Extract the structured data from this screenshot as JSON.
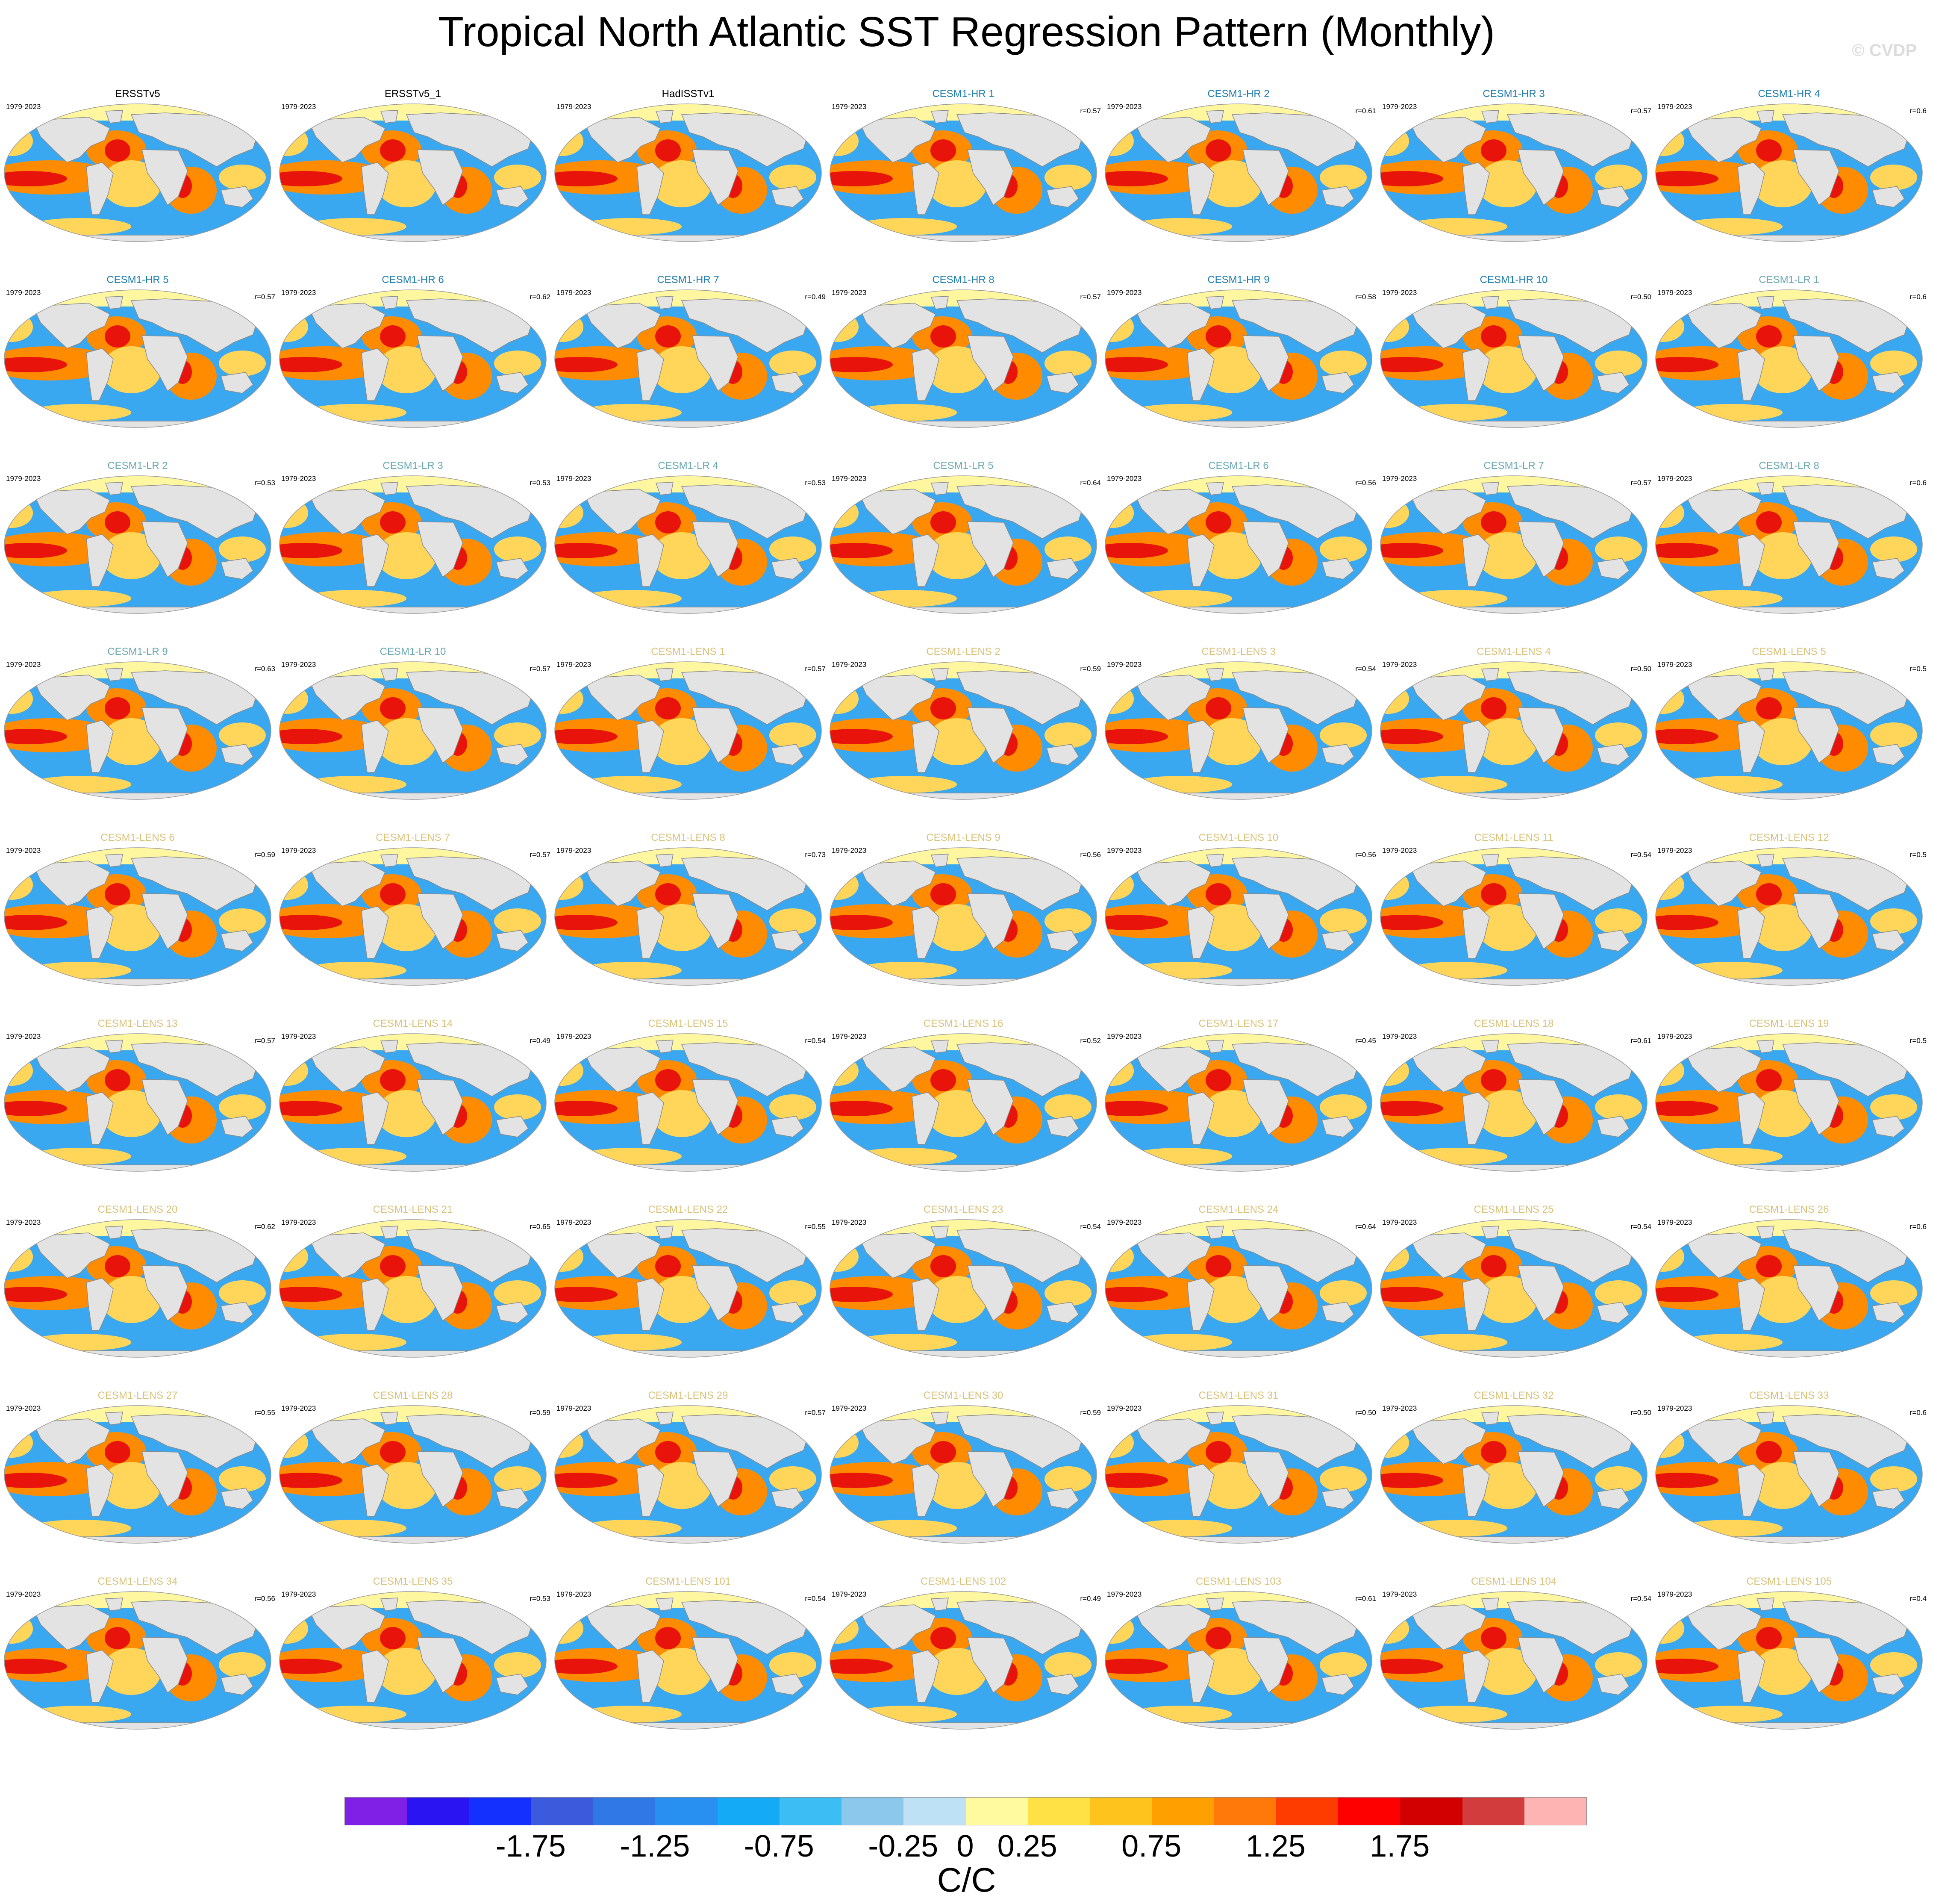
{
  "title": "Tropical North Atlantic SST Regression Pattern (Monthly)",
  "credit": "© CVDP",
  "period": "1979-2023",
  "panels": [
    {
      "name": "ERSSTv5",
      "group": "obs",
      "r": ""
    },
    {
      "name": "ERSSTv5_1",
      "group": "obs",
      "r": ""
    },
    {
      "name": "HadISSTv1",
      "group": "obs",
      "r": ""
    },
    {
      "name": "CESM1-HR 1",
      "group": "hr",
      "r": "r=0.57"
    },
    {
      "name": "CESM1-HR 2",
      "group": "hr",
      "r": "r=0.61"
    },
    {
      "name": "CESM1-HR 3",
      "group": "hr",
      "r": "r=0.57"
    },
    {
      "name": "CESM1-HR 4",
      "group": "hr",
      "r": "r=0.6"
    },
    {
      "name": "CESM1-HR 5",
      "group": "hr",
      "r": "r=0.57"
    },
    {
      "name": "CESM1-HR 6",
      "group": "hr",
      "r": "r=0.62"
    },
    {
      "name": "CESM1-HR 7",
      "group": "hr",
      "r": "r=0.49"
    },
    {
      "name": "CESM1-HR 8",
      "group": "hr",
      "r": "r=0.57"
    },
    {
      "name": "CESM1-HR 9",
      "group": "hr",
      "r": "r=0.58"
    },
    {
      "name": "CESM1-HR 10",
      "group": "hr",
      "r": "r=0.50"
    },
    {
      "name": "CESM1-LR 1",
      "group": "lr",
      "r": "r=0.6"
    },
    {
      "name": "CESM1-LR 2",
      "group": "lr",
      "r": "r=0.53"
    },
    {
      "name": "CESM1-LR 3",
      "group": "lr",
      "r": "r=0.53"
    },
    {
      "name": "CESM1-LR 4",
      "group": "lr",
      "r": "r=0.53"
    },
    {
      "name": "CESM1-LR 5",
      "group": "lr",
      "r": "r=0.64"
    },
    {
      "name": "CESM1-LR 6",
      "group": "lr",
      "r": "r=0.56"
    },
    {
      "name": "CESM1-LR 7",
      "group": "lr",
      "r": "r=0.57"
    },
    {
      "name": "CESM1-LR 8",
      "group": "lr",
      "r": "r=0.6"
    },
    {
      "name": "CESM1-LR 9",
      "group": "lr",
      "r": "r=0.63"
    },
    {
      "name": "CESM1-LR 10",
      "group": "lr",
      "r": "r=0.57"
    },
    {
      "name": "CESM1-LENS 1",
      "group": "lens",
      "r": "r=0.57"
    },
    {
      "name": "CESM1-LENS 2",
      "group": "lens",
      "r": "r=0.59"
    },
    {
      "name": "CESM1-LENS 3",
      "group": "lens",
      "r": "r=0.54"
    },
    {
      "name": "CESM1-LENS 4",
      "group": "lens",
      "r": "r=0.50"
    },
    {
      "name": "CESM1-LENS 5",
      "group": "lens",
      "r": "r=0.5"
    },
    {
      "name": "CESM1-LENS 6",
      "group": "lens",
      "r": "r=0.59"
    },
    {
      "name": "CESM1-LENS 7",
      "group": "lens",
      "r": "r=0.57"
    },
    {
      "name": "CESM1-LENS 8",
      "group": "lens",
      "r": "r=0.73"
    },
    {
      "name": "CESM1-LENS 9",
      "group": "lens",
      "r": "r=0.56"
    },
    {
      "name": "CESM1-LENS 10",
      "group": "lens",
      "r": "r=0.56"
    },
    {
      "name": "CESM1-LENS 11",
      "group": "lens",
      "r": "r=0.54"
    },
    {
      "name": "CESM1-LENS 12",
      "group": "lens",
      "r": "r=0.5"
    },
    {
      "name": "CESM1-LENS 13",
      "group": "lens",
      "r": "r=0.57"
    },
    {
      "name": "CESM1-LENS 14",
      "group": "lens",
      "r": "r=0.49"
    },
    {
      "name": "CESM1-LENS 15",
      "group": "lens",
      "r": "r=0.54"
    },
    {
      "name": "CESM1-LENS 16",
      "group": "lens",
      "r": "r=0.52"
    },
    {
      "name": "CESM1-LENS 17",
      "group": "lens",
      "r": "r=0.45"
    },
    {
      "name": "CESM1-LENS 18",
      "group": "lens",
      "r": "r=0.61"
    },
    {
      "name": "CESM1-LENS 19",
      "group": "lens",
      "r": "r=0.5"
    },
    {
      "name": "CESM1-LENS 20",
      "group": "lens",
      "r": "r=0.62"
    },
    {
      "name": "CESM1-LENS 21",
      "group": "lens",
      "r": "r=0.65"
    },
    {
      "name": "CESM1-LENS 22",
      "group": "lens",
      "r": "r=0.55"
    },
    {
      "name": "CESM1-LENS 23",
      "group": "lens",
      "r": "r=0.54"
    },
    {
      "name": "CESM1-LENS 24",
      "group": "lens",
      "r": "r=0.64"
    },
    {
      "name": "CESM1-LENS 25",
      "group": "lens",
      "r": "r=0.54"
    },
    {
      "name": "CESM1-LENS 26",
      "group": "lens",
      "r": "r=0.6"
    },
    {
      "name": "CESM1-LENS 27",
      "group": "lens",
      "r": "r=0.55"
    },
    {
      "name": "CESM1-LENS 28",
      "group": "lens",
      "r": "r=0.59"
    },
    {
      "name": "CESM1-LENS 29",
      "group": "lens",
      "r": "r=0.57"
    },
    {
      "name": "CESM1-LENS 30",
      "group": "lens",
      "r": "r=0.59"
    },
    {
      "name": "CESM1-LENS 31",
      "group": "lens",
      "r": "r=0.50"
    },
    {
      "name": "CESM1-LENS 32",
      "group": "lens",
      "r": "r=0.50"
    },
    {
      "name": "CESM1-LENS 33",
      "group": "lens",
      "r": "r=0.6"
    },
    {
      "name": "CESM1-LENS 34",
      "group": "lens",
      "r": "r=0.56"
    },
    {
      "name": "CESM1-LENS 35",
      "group": "lens",
      "r": "r=0.53"
    },
    {
      "name": "CESM1-LENS 101",
      "group": "lens",
      "r": "r=0.54"
    },
    {
      "name": "CESM1-LENS 102",
      "group": "lens",
      "r": "r=0.49"
    },
    {
      "name": "CESM1-LENS 103",
      "group": "lens",
      "r": "r=0.61"
    },
    {
      "name": "CESM1-LENS 104",
      "group": "lens",
      "r": "r=0.54"
    },
    {
      "name": "CESM1-LENS 105",
      "group": "lens",
      "r": "r=0.4"
    }
  ],
  "title_colors": {
    "obs": "#000000",
    "hr": "#1f7fb0",
    "lr": "#6aa8b2",
    "lens": "#d9c27a"
  },
  "map_colors": {
    "land": "#e3e3e3",
    "coast": "#8a8a8a",
    "warm": "#ff8c00",
    "hot": "#e8140c",
    "cold": "#3aa8f0",
    "zero": "#fff7a0",
    "pale": "#ffd65a"
  },
  "chart_data": {
    "type": "heatmap",
    "title": "Tropical North Atlantic SST Regression Pattern (Monthly)",
    "layout": "grid 7 columns x 9 rows of global map panels",
    "colorbar": {
      "colors": [
        "#8020e6",
        "#2a14f2",
        "#1430ff",
        "#3c5adc",
        "#3078e6",
        "#2890f0",
        "#14aaf5",
        "#3cbef5",
        "#8cc8eb",
        "#bee1f5",
        "#fffaa0",
        "#ffe146",
        "#ffc31e",
        "#ffa000",
        "#ff780a",
        "#ff3c00",
        "#ff0000",
        "#d20000",
        "#d23c3c",
        "#ffb4b4"
      ],
      "boundaries": [
        -2.25,
        -2.0,
        -1.75,
        -1.5,
        -1.25,
        -1.0,
        -0.75,
        -0.5,
        -0.25,
        0,
        0.25,
        0.5,
        0.75,
        1.0,
        1.25,
        1.5,
        1.75,
        2.0,
        2.25
      ],
      "tick_labels": [
        {
          "value": -1.75,
          "label": "-1.75"
        },
        {
          "value": -1.25,
          "label": "-1.25"
        },
        {
          "value": -0.75,
          "label": "-0.75"
        },
        {
          "value": -0.25,
          "label": "-0.25"
        },
        {
          "value": 0,
          "label": "0"
        },
        {
          "value": 0.25,
          "label": "0.25"
        },
        {
          "value": 0.75,
          "label": "0.75"
        },
        {
          "value": 1.25,
          "label": "1.25"
        },
        {
          "value": 1.75,
          "label": "1.75"
        }
      ],
      "units": "C/C"
    }
  }
}
